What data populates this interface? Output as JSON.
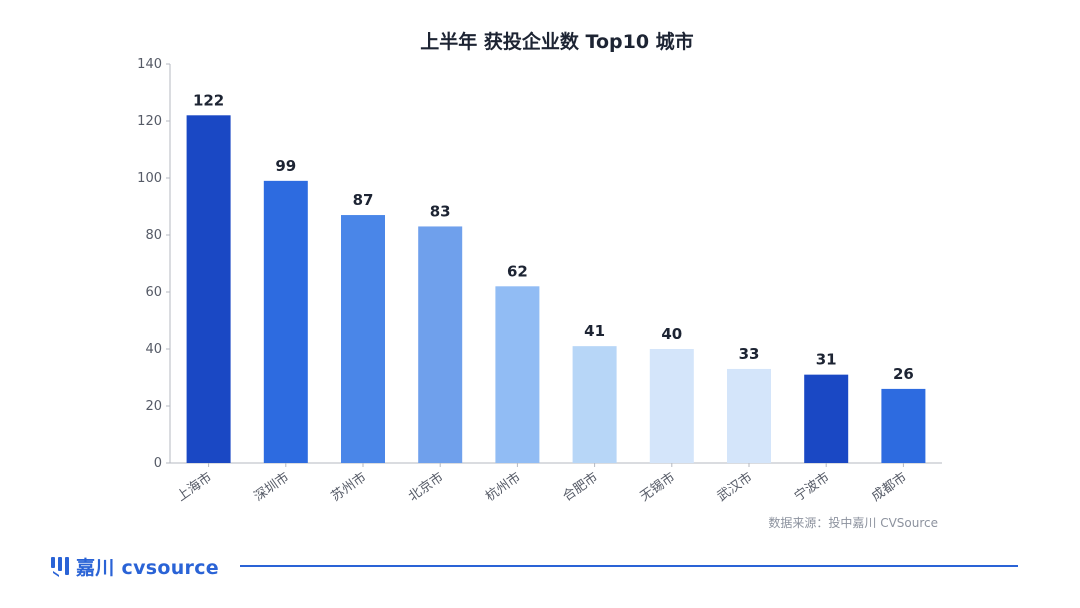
{
  "chart_data": {
    "type": "bar",
    "title": "上半年 获投企业数 Top10 城市",
    "xlabel": "",
    "ylabel": "",
    "ylim": [
      0,
      140
    ],
    "yticks": [
      0,
      20,
      40,
      60,
      80,
      100,
      120,
      140
    ],
    "grid": false,
    "categories": [
      "上海市",
      "深圳市",
      "苏州市",
      "北京市",
      "杭州市",
      "合肥市",
      "无锡市",
      "武汉市",
      "宁波市",
      "成都市"
    ],
    "values": [
      122,
      99,
      87,
      83,
      62,
      41,
      40,
      33,
      31,
      26
    ],
    "bar_colors": [
      "#1a48c4",
      "#2d6be0",
      "#4a86e8",
      "#6fa0ec",
      "#91bcf4",
      "#b7d6f7",
      "#d4e5fa",
      "#d4e5fa",
      "#1a48c4",
      "#2d6be0"
    ]
  },
  "source_note": "数据来源：投中嘉川 CVSource",
  "footer": {
    "logo_text": "嘉川 cvsource",
    "brand_color": "#2a63d6",
    "logo_icon": "cvsource-logo-icon"
  }
}
